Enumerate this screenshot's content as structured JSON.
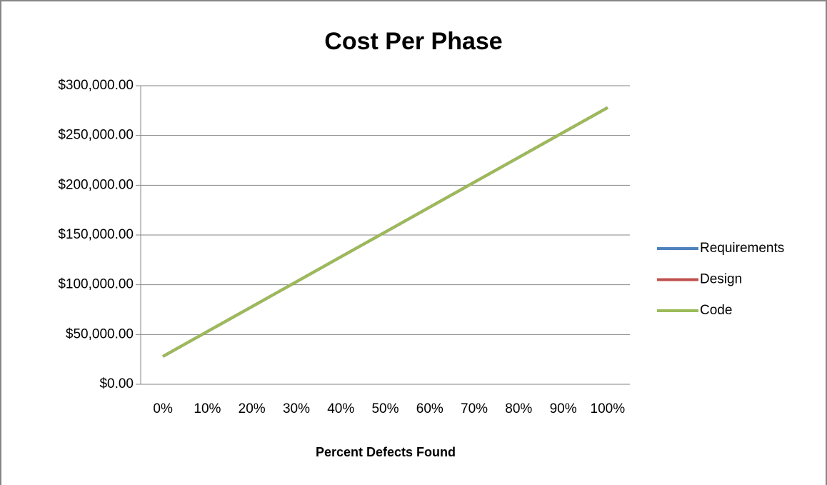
{
  "chart_data": {
    "type": "line",
    "title": "Cost Per Phase",
    "x_label": "Percent Defects Found",
    "categories": [
      "0%",
      "10%",
      "20%",
      "30%",
      "40%",
      "50%",
      "60%",
      "70%",
      "80%",
      "90%",
      "100%"
    ],
    "series": [
      {
        "name": "Requirements",
        "color": "#4f81bd",
        "values": [
          28000,
          53000,
          78000,
          103000,
          128000,
          153000,
          178000,
          203000,
          228000,
          253000,
          278000
        ]
      },
      {
        "name": "Design",
        "color": "#c0504d",
        "values": [
          28000,
          53000,
          78000,
          103000,
          128000,
          153000,
          178000,
          203000,
          228000,
          253000,
          278000
        ]
      },
      {
        "name": "Code",
        "color": "#9bbb59",
        "values": [
          28000,
          53000,
          78000,
          103000,
          128000,
          153000,
          178000,
          203000,
          228000,
          253000,
          278000
        ]
      }
    ],
    "ylim": [
      0,
      300000
    ],
    "yticks": [
      {
        "value": 0,
        "label": "$0.00"
      },
      {
        "value": 50000,
        "label": "$50,000.00"
      },
      {
        "value": 100000,
        "label": "$100,000.00"
      },
      {
        "value": 150000,
        "label": "$150,000.00"
      },
      {
        "value": 200000,
        "label": "$200,000.00"
      },
      {
        "value": 250000,
        "label": "$250,000.00"
      },
      {
        "value": 300000,
        "label": "$300,000.00"
      }
    ],
    "grid": true,
    "legend": "right"
  }
}
